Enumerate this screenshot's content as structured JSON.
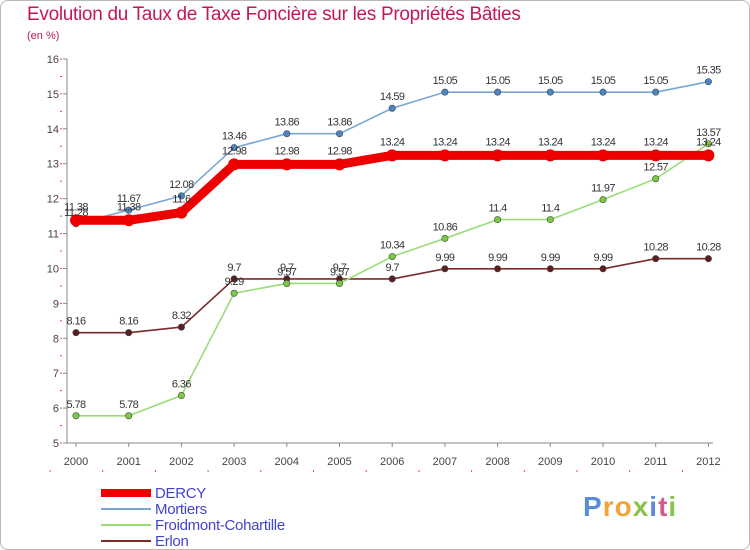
{
  "title": "Evolution du Taux de Taxe Foncière sur les Propriétés Bâties",
  "subtitle": "(en %)",
  "brand": {
    "letters": [
      "P",
      "r",
      "o",
      "x",
      "i",
      "t",
      "i"
    ],
    "colors": [
      "#5b8dd6",
      "#f2a33a",
      "#f2a33a",
      "#8bc34a",
      "#5b8dd6",
      "#d65b8d",
      "#8bc34a"
    ]
  },
  "chart_data": {
    "type": "line",
    "title": "Evolution du Taux de Taxe Foncière sur les Propriétés Bâties",
    "ylabel": "(en %)",
    "xlabel": "",
    "ylim": [
      5,
      16
    ],
    "yticks": [
      5,
      6,
      7,
      8,
      9,
      10,
      11,
      12,
      13,
      14,
      15,
      16
    ],
    "x": [
      "2000",
      "2001",
      "2002",
      "2003",
      "2004",
      "2005",
      "2006",
      "2007",
      "2008",
      "2009",
      "2010",
      "2011",
      "2012"
    ],
    "series": [
      {
        "name": "Erlon",
        "color": "#7a2a2a",
        "marker": "#5c1f1f",
        "values": [
          8.16,
          8.16,
          8.32,
          9.7,
          9.7,
          9.7,
          9.7,
          9.99,
          9.99,
          9.99,
          9.99,
          10.28,
          10.28
        ],
        "labels": [
          "8.16",
          "8.16",
          "8.32",
          "9.7",
          "9.7",
          "9.7",
          "9.7",
          "9.99",
          "9.99",
          "9.99",
          "9.99",
          "10.28",
          "10.28"
        ]
      },
      {
        "name": "Froidmont-Cohartille",
        "color": "#99dd77",
        "marker": "#77cc44",
        "values": [
          5.78,
          5.78,
          6.36,
          9.29,
          9.57,
          9.57,
          10.34,
          10.86,
          11.4,
          11.4,
          11.97,
          12.57,
          13.57
        ],
        "labels": [
          "5.78",
          "5.78",
          "6.36",
          "9.29",
          "9.57",
          "9.57",
          "10.34",
          "10.86",
          "11.4",
          "11.4",
          "11.97",
          "12.57",
          "13.57"
        ]
      },
      {
        "name": "Mortiers",
        "color": "#7aa6d6",
        "marker": "#4a86c6",
        "values": [
          11.28,
          11.67,
          12.08,
          13.46,
          13.86,
          13.86,
          14.59,
          15.05,
          15.05,
          15.05,
          15.05,
          15.05,
          15.35
        ],
        "labels": [
          "11.28",
          "11.67",
          "12.08",
          "13.46",
          "13.86",
          "13.86",
          "14.59",
          "15.05",
          "15.05",
          "15.05",
          "15.05",
          "15.05",
          "15.35"
        ]
      },
      {
        "name": "DERCY",
        "color": "#ee0000",
        "marker": "#ee0000",
        "values": [
          11.38,
          11.38,
          11.6,
          12.98,
          12.98,
          12.98,
          13.24,
          13.24,
          13.24,
          13.24,
          13.24,
          13.24,
          13.24
        ],
        "labels": [
          "11.38",
          "11.38",
          "11.6",
          "12.98",
          "12.98",
          "12.98",
          "13.24",
          "13.24",
          "13.24",
          "13.24",
          "13.24",
          "13.24",
          "13.24"
        ]
      }
    ],
    "legend_order": [
      "DERCY",
      "Mortiers",
      "Froidmont-Cohartille",
      "Erlon"
    ],
    "legend_colors": {
      "DERCY": "#ee0000",
      "Mortiers": "#7aa6d6",
      "Froidmont-Cohartille": "#99dd77",
      "Erlon": "#7a2a2a"
    },
    "legend_text_color": "#4444cc",
    "legend_position": "bottom-left",
    "grid": false
  }
}
